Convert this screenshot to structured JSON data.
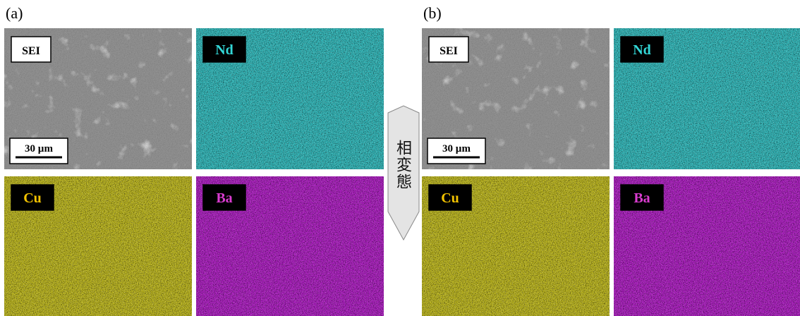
{
  "panels": [
    {
      "label": "(a)",
      "tiles": [
        {
          "label": "SEI"
        },
        {
          "label": "Nd"
        },
        {
          "label": "Cu"
        },
        {
          "label": "Ba"
        }
      ],
      "scale_bar": "30 µm"
    },
    {
      "label": "(b)",
      "tiles": [
        {
          "label": "SEI"
        },
        {
          "label": "Nd"
        },
        {
          "label": "Cu"
        },
        {
          "label": "Ba"
        }
      ],
      "scale_bar": "30 µm"
    }
  ],
  "arrow": {
    "text": "相変態"
  }
}
